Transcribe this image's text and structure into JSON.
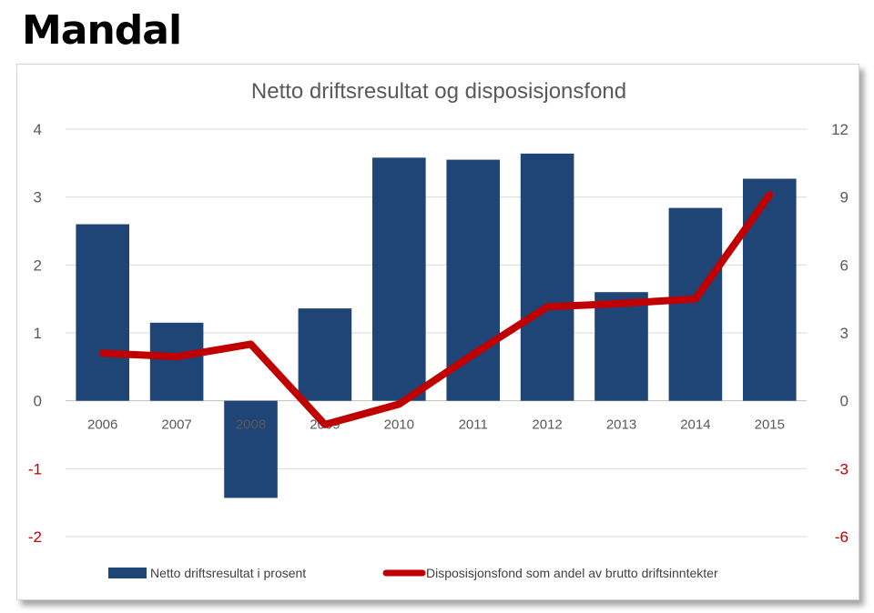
{
  "heading": "Mandal",
  "chart_data": {
    "type": "bar",
    "title": "Netto driftsresultat og disposisjonsfond",
    "categories": [
      "2006",
      "2007",
      "2008",
      "2009",
      "2010",
      "2011",
      "2012",
      "2013",
      "2014",
      "2015"
    ],
    "series": [
      {
        "name": "Netto driftsresultat i prosent",
        "type": "bar",
        "axis": "left",
        "color": "#1f4476",
        "values": [
          2.6,
          1.15,
          -1.43,
          1.36,
          3.58,
          3.55,
          3.64,
          1.6,
          2.84,
          3.27
        ]
      },
      {
        "name": "Disposisjonsfond som andel av brutto driftsinntekter",
        "type": "line",
        "axis": "right",
        "color": "#c00000",
        "values": [
          2.1,
          1.95,
          2.5,
          -1.05,
          -0.15,
          2.05,
          4.15,
          4.3,
          4.5,
          9.1
        ]
      }
    ],
    "left_axis": {
      "ylim": [
        -2,
        4
      ],
      "ticks": [
        "4",
        "3",
        "2",
        "1",
        "0",
        "-1",
        "-2"
      ]
    },
    "right_axis": {
      "ylim": [
        -6,
        12
      ],
      "ticks": [
        "12",
        "9",
        "6",
        "3",
        "0",
        "-3",
        "-6"
      ]
    },
    "negative_tick_color": "#c00000",
    "grid": true,
    "legend": "bottom"
  }
}
